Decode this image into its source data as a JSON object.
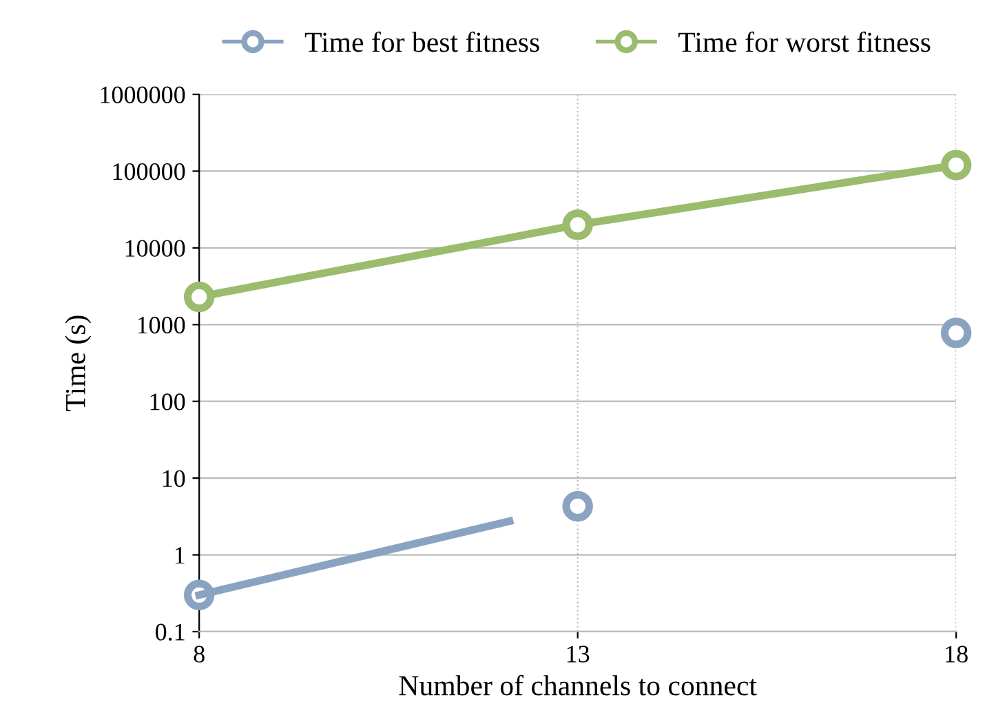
{
  "chart_data": {
    "type": "line",
    "xlabel": "Number of channels to connect",
    "ylabel": "Time (s)",
    "x": [
      8,
      13,
      18
    ],
    "series": [
      {
        "name": "Time for best fitness",
        "color": "#8aa3c1",
        "values": [
          0.3,
          4.3,
          780
        ],
        "type": "scatter"
      },
      {
        "color": "#8aa3c1",
        "x": [
          8,
          12.1
        ],
        "values": [
          0.3,
          2.75
        ],
        "type": "line",
        "marker": "none"
      },
      {
        "name": "Time for worst fitness",
        "color": "#9bbb6d",
        "values": [
          2300,
          20000,
          120000
        ]
      }
    ],
    "ref_lines": [
      {
        "axis": "x",
        "value": 13,
        "color": "#bbbbbb",
        "line_style": "dotted"
      },
      {
        "axis": "x",
        "value": 18,
        "color": "#bbbbbb",
        "line_style": "dotted"
      }
    ],
    "log": true,
    "xlim": [
      8,
      18
    ],
    "xticks": [
      8,
      13,
      18
    ],
    "ylim": [
      0.1,
      1000000
    ],
    "yticks": [
      {
        "value": 0.1,
        "label": "0.1"
      },
      1,
      10,
      100,
      1000,
      10000,
      100000,
      1000000
    ],
    "grid": "y",
    "legend": "top",
    "marker": "circle",
    "line_style": "solid"
  }
}
